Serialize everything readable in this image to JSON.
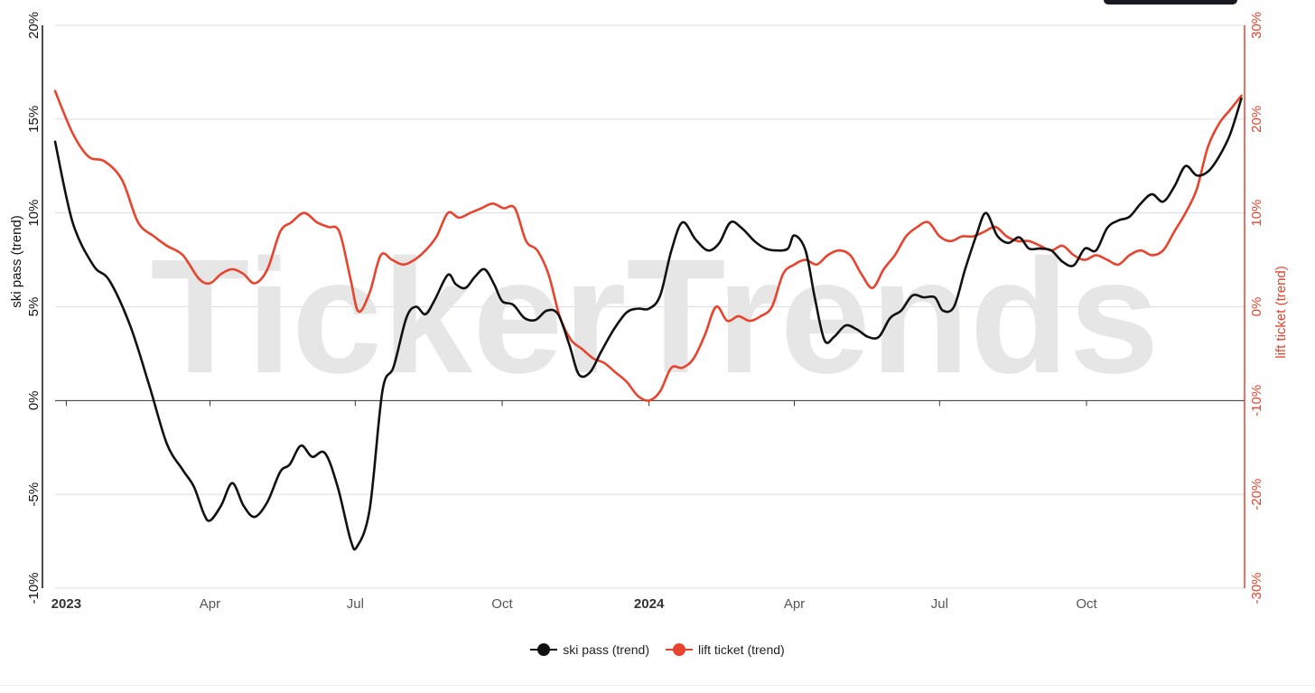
{
  "watermark": "TickerTrends",
  "colors": {
    "primary": "#111111",
    "secondary": "#e8432d",
    "grid": "#dcdce6",
    "axis_text": "#222222",
    "watermark": "#e6e6e6"
  },
  "chart_data": {
    "type": "line",
    "title": "",
    "xlabel": "",
    "x_ticks": [
      {
        "date": "2023-01-01",
        "label": "2023",
        "bold": true
      },
      {
        "date": "2023-04-01",
        "label": "Apr",
        "bold": false
      },
      {
        "date": "2023-07-01",
        "label": "Jul",
        "bold": false
      },
      {
        "date": "2023-10-01",
        "label": "Oct",
        "bold": false
      },
      {
        "date": "2024-01-01",
        "label": "2024",
        "bold": true
      },
      {
        "date": "2024-04-01",
        "label": "Apr",
        "bold": false
      },
      {
        "date": "2024-07-01",
        "label": "Jul",
        "bold": false
      },
      {
        "date": "2024-10-01",
        "label": "Oct",
        "bold": false
      }
    ],
    "x_range": [
      "2022-12-25",
      "2025-01-08"
    ],
    "y_left": {
      "label": "ski pass  (trend)",
      "min": -10,
      "max": 20,
      "ticks": [
        -10,
        -5,
        0,
        5,
        10,
        15,
        20
      ],
      "unit": "%"
    },
    "y_right": {
      "label": "lift ticket  (trend)",
      "min": -30,
      "max": 30,
      "ticks": [
        -30,
        -20,
        -10,
        0,
        10,
        20,
        30
      ],
      "unit": "%"
    },
    "grid": true,
    "legend_position": "bottom-center",
    "series": [
      {
        "name": "ski pass  (trend)",
        "axis": "left",
        "color": "#111111",
        "points": [
          [
            "2022-12-25",
            13.8
          ],
          [
            "2023-01-05",
            9.5
          ],
          [
            "2023-01-18",
            7.2
          ],
          [
            "2023-01-28",
            6.4
          ],
          [
            "2023-02-10",
            4.0
          ],
          [
            "2023-02-22",
            0.8
          ],
          [
            "2023-03-05",
            -2.3
          ],
          [
            "2023-03-15",
            -3.7
          ],
          [
            "2023-03-22",
            -4.6
          ],
          [
            "2023-03-28",
            -6.0
          ],
          [
            "2023-04-01",
            -6.4
          ],
          [
            "2023-04-08",
            -5.6
          ],
          [
            "2023-04-15",
            -4.4
          ],
          [
            "2023-04-22",
            -5.6
          ],
          [
            "2023-04-29",
            -6.2
          ],
          [
            "2023-05-07",
            -5.4
          ],
          [
            "2023-05-15",
            -3.8
          ],
          [
            "2023-05-21",
            -3.4
          ],
          [
            "2023-05-28",
            -2.4
          ],
          [
            "2023-06-04",
            -3.0
          ],
          [
            "2023-06-12",
            -2.8
          ],
          [
            "2023-06-20",
            -4.6
          ],
          [
            "2023-06-28",
            -7.4
          ],
          [
            "2023-07-02",
            -7.8
          ],
          [
            "2023-07-10",
            -5.8
          ],
          [
            "2023-07-18",
            0.5
          ],
          [
            "2023-07-25",
            1.8
          ],
          [
            "2023-08-02",
            4.4
          ],
          [
            "2023-08-08",
            5.0
          ],
          [
            "2023-08-14",
            4.6
          ],
          [
            "2023-08-20",
            5.4
          ],
          [
            "2023-08-28",
            6.7
          ],
          [
            "2023-09-02",
            6.2
          ],
          [
            "2023-09-08",
            6.0
          ],
          [
            "2023-09-14",
            6.6
          ],
          [
            "2023-09-20",
            7.0
          ],
          [
            "2023-09-26",
            6.2
          ],
          [
            "2023-10-01",
            5.3
          ],
          [
            "2023-10-08",
            5.1
          ],
          [
            "2023-10-15",
            4.4
          ],
          [
            "2023-10-22",
            4.3
          ],
          [
            "2023-10-29",
            4.8
          ],
          [
            "2023-11-05",
            4.6
          ],
          [
            "2023-11-12",
            3.0
          ],
          [
            "2023-11-18",
            1.4
          ],
          [
            "2023-11-25",
            1.5
          ],
          [
            "2023-12-02",
            2.6
          ],
          [
            "2023-12-10",
            3.8
          ],
          [
            "2023-12-18",
            4.7
          ],
          [
            "2023-12-25",
            4.9
          ],
          [
            "2024-01-01",
            4.9
          ],
          [
            "2024-01-08",
            5.6
          ],
          [
            "2024-01-15",
            8.0
          ],
          [
            "2024-01-22",
            9.5
          ],
          [
            "2024-01-30",
            8.6
          ],
          [
            "2024-02-07",
            8.0
          ],
          [
            "2024-02-14",
            8.4
          ],
          [
            "2024-02-21",
            9.5
          ],
          [
            "2024-02-28",
            9.2
          ],
          [
            "2024-03-07",
            8.5
          ],
          [
            "2024-03-14",
            8.1
          ],
          [
            "2024-03-21",
            8.0
          ],
          [
            "2024-03-28",
            8.1
          ],
          [
            "2024-04-01",
            8.8
          ],
          [
            "2024-04-08",
            8.0
          ],
          [
            "2024-04-14",
            5.4
          ],
          [
            "2024-04-20",
            3.2
          ],
          [
            "2024-04-26",
            3.4
          ],
          [
            "2024-05-03",
            4.0
          ],
          [
            "2024-05-10",
            3.8
          ],
          [
            "2024-05-17",
            3.4
          ],
          [
            "2024-05-24",
            3.4
          ],
          [
            "2024-05-31",
            4.4
          ],
          [
            "2024-06-07",
            4.8
          ],
          [
            "2024-06-14",
            5.6
          ],
          [
            "2024-06-21",
            5.5
          ],
          [
            "2024-06-28",
            5.5
          ],
          [
            "2024-07-03",
            4.8
          ],
          [
            "2024-07-10",
            5.0
          ],
          [
            "2024-07-17",
            7.0
          ],
          [
            "2024-07-24",
            8.8
          ],
          [
            "2024-07-30",
            10.0
          ],
          [
            "2024-08-06",
            8.8
          ],
          [
            "2024-08-13",
            8.4
          ],
          [
            "2024-08-20",
            8.7
          ],
          [
            "2024-08-26",
            8.1
          ],
          [
            "2024-09-02",
            8.1
          ],
          [
            "2024-09-09",
            8.0
          ],
          [
            "2024-09-16",
            7.4
          ],
          [
            "2024-09-23",
            7.2
          ],
          [
            "2024-09-30",
            8.1
          ],
          [
            "2024-10-07",
            8.0
          ],
          [
            "2024-10-14",
            9.2
          ],
          [
            "2024-10-21",
            9.6
          ],
          [
            "2024-10-28",
            9.8
          ],
          [
            "2024-11-04",
            10.5
          ],
          [
            "2024-11-11",
            11.0
          ],
          [
            "2024-11-18",
            10.6
          ],
          [
            "2024-11-25",
            11.4
          ],
          [
            "2024-12-02",
            12.5
          ],
          [
            "2024-12-09",
            12.0
          ],
          [
            "2024-12-16",
            12.2
          ],
          [
            "2024-12-23",
            13.0
          ],
          [
            "2024-12-30",
            14.2
          ],
          [
            "2025-01-06",
            16.1
          ]
        ]
      },
      {
        "name": "lift ticket  (trend)",
        "axis": "right",
        "color": "#e8432d",
        "points": [
          [
            "2022-12-25",
            23.0
          ],
          [
            "2023-01-05",
            18.5
          ],
          [
            "2023-01-15",
            16.0
          ],
          [
            "2023-01-25",
            15.5
          ],
          [
            "2023-02-05",
            13.5
          ],
          [
            "2023-02-15",
            9.0
          ],
          [
            "2023-02-25",
            7.5
          ],
          [
            "2023-03-05",
            6.5
          ],
          [
            "2023-03-15",
            5.5
          ],
          [
            "2023-03-25",
            3.0
          ],
          [
            "2023-04-01",
            2.5
          ],
          [
            "2023-04-08",
            3.5
          ],
          [
            "2023-04-15",
            4.0
          ],
          [
            "2023-04-22",
            3.5
          ],
          [
            "2023-04-29",
            2.5
          ],
          [
            "2023-05-07",
            4.0
          ],
          [
            "2023-05-15",
            8.0
          ],
          [
            "2023-05-22",
            9.0
          ],
          [
            "2023-05-30",
            10.0
          ],
          [
            "2023-06-07",
            9.0
          ],
          [
            "2023-06-14",
            8.5
          ],
          [
            "2023-06-21",
            8.0
          ],
          [
            "2023-06-28",
            3.0
          ],
          [
            "2023-07-03",
            -0.5
          ],
          [
            "2023-07-10",
            1.5
          ],
          [
            "2023-07-17",
            5.5
          ],
          [
            "2023-07-24",
            5.0
          ],
          [
            "2023-07-31",
            4.5
          ],
          [
            "2023-08-07",
            5.0
          ],
          [
            "2023-08-14",
            6.0
          ],
          [
            "2023-08-21",
            7.5
          ],
          [
            "2023-08-28",
            10.0
          ],
          [
            "2023-09-04",
            9.5
          ],
          [
            "2023-09-11",
            10.0
          ],
          [
            "2023-09-18",
            10.5
          ],
          [
            "2023-09-25",
            11.0
          ],
          [
            "2023-10-02",
            10.5
          ],
          [
            "2023-10-09",
            10.5
          ],
          [
            "2023-10-16",
            7.0
          ],
          [
            "2023-10-23",
            6.0
          ],
          [
            "2023-10-30",
            3.5
          ],
          [
            "2023-11-06",
            -1.0
          ],
          [
            "2023-11-13",
            -3.5
          ],
          [
            "2023-11-20",
            -4.5
          ],
          [
            "2023-11-27",
            -5.5
          ],
          [
            "2023-12-04",
            -6.0
          ],
          [
            "2023-12-11",
            -7.0
          ],
          [
            "2023-12-18",
            -8.0
          ],
          [
            "2023-12-25",
            -9.5
          ],
          [
            "2024-01-01",
            -10.0
          ],
          [
            "2024-01-08",
            -9.0
          ],
          [
            "2024-01-15",
            -6.5
          ],
          [
            "2024-01-22",
            -6.5
          ],
          [
            "2024-01-29",
            -5.5
          ],
          [
            "2024-02-05",
            -3.0
          ],
          [
            "2024-02-12",
            0.0
          ],
          [
            "2024-02-19",
            -1.5
          ],
          [
            "2024-02-26",
            -1.0
          ],
          [
            "2024-03-04",
            -1.5
          ],
          [
            "2024-03-11",
            -1.0
          ],
          [
            "2024-03-18",
            0.0
          ],
          [
            "2024-03-25",
            3.5
          ],
          [
            "2024-04-01",
            4.5
          ],
          [
            "2024-04-08",
            5.0
          ],
          [
            "2024-04-15",
            4.5
          ],
          [
            "2024-04-22",
            5.5
          ],
          [
            "2024-04-29",
            6.0
          ],
          [
            "2024-05-06",
            5.5
          ],
          [
            "2024-05-13",
            3.5
          ],
          [
            "2024-05-20",
            2.0
          ],
          [
            "2024-05-27",
            4.0
          ],
          [
            "2024-06-03",
            5.5
          ],
          [
            "2024-06-10",
            7.5
          ],
          [
            "2024-06-17",
            8.5
          ],
          [
            "2024-06-24",
            9.0
          ],
          [
            "2024-07-01",
            7.5
          ],
          [
            "2024-07-08",
            7.0
          ],
          [
            "2024-07-15",
            7.5
          ],
          [
            "2024-07-22",
            7.5
          ],
          [
            "2024-07-29",
            8.0
          ],
          [
            "2024-08-05",
            8.5
          ],
          [
            "2024-08-12",
            7.5
          ],
          [
            "2024-08-19",
            7.0
          ],
          [
            "2024-08-26",
            7.0
          ],
          [
            "2024-09-02",
            6.5
          ],
          [
            "2024-09-09",
            6.0
          ],
          [
            "2024-09-16",
            6.5
          ],
          [
            "2024-09-23",
            5.5
          ],
          [
            "2024-09-30",
            5.0
          ],
          [
            "2024-10-07",
            5.5
          ],
          [
            "2024-10-14",
            5.0
          ],
          [
            "2024-10-21",
            4.5
          ],
          [
            "2024-10-28",
            5.5
          ],
          [
            "2024-11-04",
            6.0
          ],
          [
            "2024-11-11",
            5.5
          ],
          [
            "2024-11-18",
            6.0
          ],
          [
            "2024-11-25",
            8.0
          ],
          [
            "2024-12-02",
            10.0
          ],
          [
            "2024-12-09",
            12.5
          ],
          [
            "2024-12-16",
            17.0
          ],
          [
            "2024-12-23",
            19.5
          ],
          [
            "2024-12-30",
            21.0
          ],
          [
            "2025-01-06",
            22.5
          ]
        ]
      }
    ]
  },
  "legend": [
    {
      "label": "ski pass  (trend)",
      "color": "#111111"
    },
    {
      "label": "lift ticket  (trend)",
      "color": "#e8432d"
    }
  ]
}
